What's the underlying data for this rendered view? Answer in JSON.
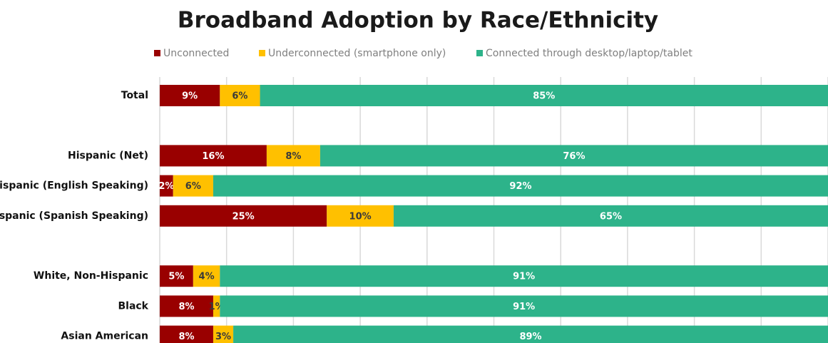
{
  "chart_data": {
    "type": "stacked-bar",
    "orientation": "horizontal",
    "title": "Broadband Adoption by Race/Ethnicity",
    "categories": [
      "Total",
      null,
      "Hispanic (Net)",
      "Hispanic (English Speaking)",
      "Hispanic (Spanish Speaking)",
      null,
      "White, Non-Hispanic",
      "Black",
      "Asian American"
    ],
    "series": [
      {
        "name": "Unconnected",
        "color": "#990000",
        "label_color": "#ffffff",
        "values": [
          9,
          null,
          16,
          2,
          25,
          null,
          5,
          8,
          8
        ],
        "value_labels": [
          "9%",
          null,
          "16%",
          "2%",
          "25%",
          null,
          "5%",
          "8%",
          "8%"
        ]
      },
      {
        "name": "Underconnected (smartphone only)",
        "color": "#ffc000",
        "label_color": "#3a3a3a",
        "values": [
          6,
          null,
          8,
          6,
          10,
          null,
          4,
          1,
          3
        ],
        "value_labels": [
          "6%",
          null,
          "8%",
          "6%",
          "10%",
          null,
          "4%",
          "1%",
          "3%"
        ]
      },
      {
        "name": "Connected through desktop/laptop/tablet",
        "color": "#2db38a",
        "label_color": "#ffffff",
        "values": [
          85,
          null,
          76,
          92,
          65,
          null,
          91,
          91,
          89
        ],
        "value_labels": [
          "85%",
          null,
          "76%",
          "92%",
          "65%",
          null,
          "91%",
          "91%",
          "89%"
        ]
      }
    ],
    "xlim": [
      0,
      100
    ],
    "xticks": [
      0,
      10,
      20,
      30,
      40,
      50,
      60,
      70,
      80,
      90,
      100
    ],
    "grid": true,
    "legend": "top"
  }
}
